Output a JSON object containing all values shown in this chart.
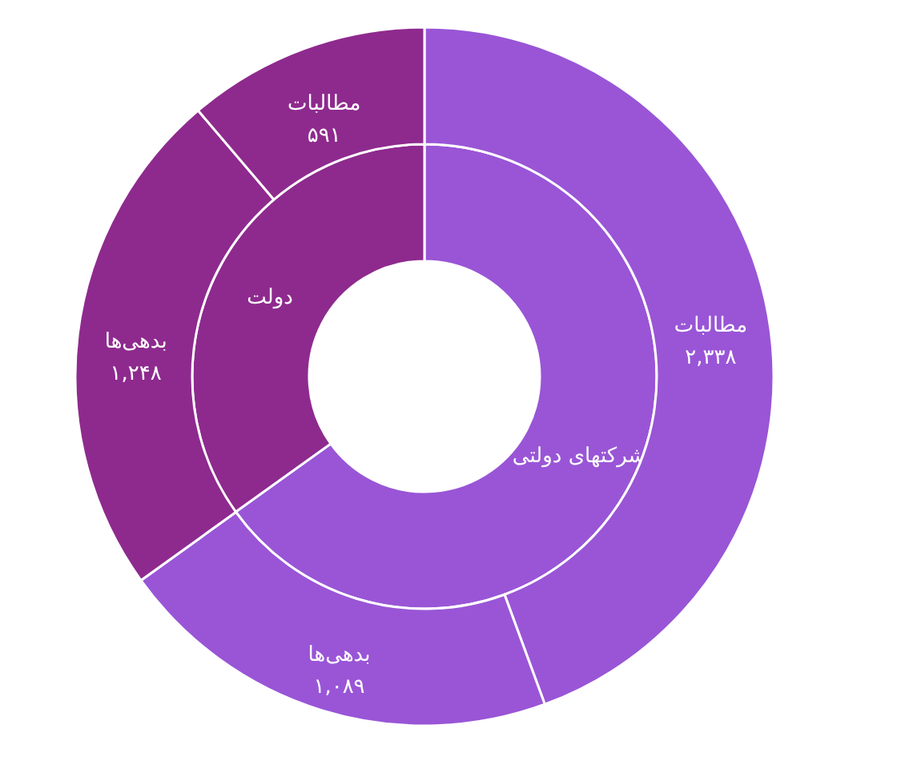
{
  "chart_data": [
    {
      "type": "donut",
      "categories": [
        "شرکتهای دولتی",
        "دولت"
      ],
      "values": [
        65.1,
        34.9
      ],
      "colors": [
        "#9955d6",
        "#8e2a8e"
      ]
    },
    {
      "type": "donut",
      "categories": [
        "مطالبات",
        "بدهی‌ها",
        "بدهی‌ها",
        "مطالبات"
      ],
      "values": [
        2338,
        1089,
        1248,
        591
      ],
      "colors": [
        "#9955d6",
        "#9955d6",
        "#8e2a8e",
        "#8e2a8e"
      ],
      "value_labels": [
        "۲,۳۳۸",
        "۱,۰۸۹",
        "۱,۲۴۸",
        "۵۹۱"
      ]
    }
  ]
}
